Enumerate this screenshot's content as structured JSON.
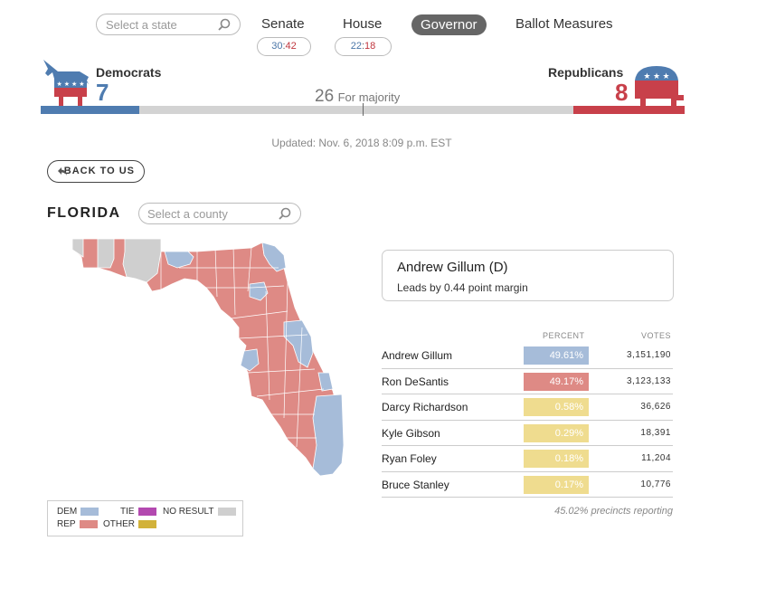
{
  "nav": {
    "search_placeholder": "Select a state",
    "tabs": [
      {
        "label": "Senate"
      },
      {
        "label": "House"
      },
      {
        "label": "Governor",
        "active": true
      },
      {
        "label": "Ballot Measures"
      }
    ],
    "senate_pill": {
      "dem": "30",
      "sep": ":",
      "rep": "42"
    },
    "house_pill": {
      "dem": "22",
      "sep": ":",
      "rep": "18"
    }
  },
  "balance": {
    "dem_label": "Democrats",
    "dem_count": "7",
    "rep_label": "Republicans",
    "rep_count": "8",
    "majority_number": "26",
    "majority_text": "For majority",
    "colors": {
      "dem": "#4f7cb0",
      "rep": "#c8404a",
      "neutral": "#d3d3d3"
    }
  },
  "updated": "Updated: Nov. 6, 2018 8:09 p.m. EST",
  "back_button": "BACK TO US",
  "state": {
    "title": "FLORIDA",
    "county_placeholder": "Select a county"
  },
  "legend": {
    "dem": "DEM",
    "tie": "TIE",
    "no_result": "NO RESULT",
    "rep": "REP",
    "other": "OTHER",
    "colors": {
      "dem": "#a6bcd9",
      "tie": "#b349b0",
      "no_result": "#cfcfcf",
      "rep": "#de8a85",
      "other": "#d2b23a"
    }
  },
  "leader": {
    "name": "Andrew Gillum (D)",
    "margin": "Leads by 0.44 point margin"
  },
  "results": {
    "percent_header": "PERCENT",
    "votes_header": "VOTES",
    "candidates": [
      {
        "name": "Andrew Gillum",
        "percent": "49.61%",
        "votes": "3,151,190",
        "color": "#a6bcd9"
      },
      {
        "name": "Ron DeSantis",
        "percent": "49.17%",
        "votes": "3,123,133",
        "color": "#de8a85"
      },
      {
        "name": "Darcy Richardson",
        "percent": "0.58%",
        "votes": "36,626",
        "color": "#efdc8f"
      },
      {
        "name": "Kyle Gibson",
        "percent": "0.29%",
        "votes": "18,391",
        "color": "#efdc8f"
      },
      {
        "name": "Ryan Foley",
        "percent": "0.18%",
        "votes": "11,204",
        "color": "#efdc8f"
      },
      {
        "name": "Bruce Stanley",
        "percent": "0.17%",
        "votes": "10,776",
        "color": "#efdc8f"
      }
    ],
    "precincts": "45.02% precincts reporting"
  }
}
